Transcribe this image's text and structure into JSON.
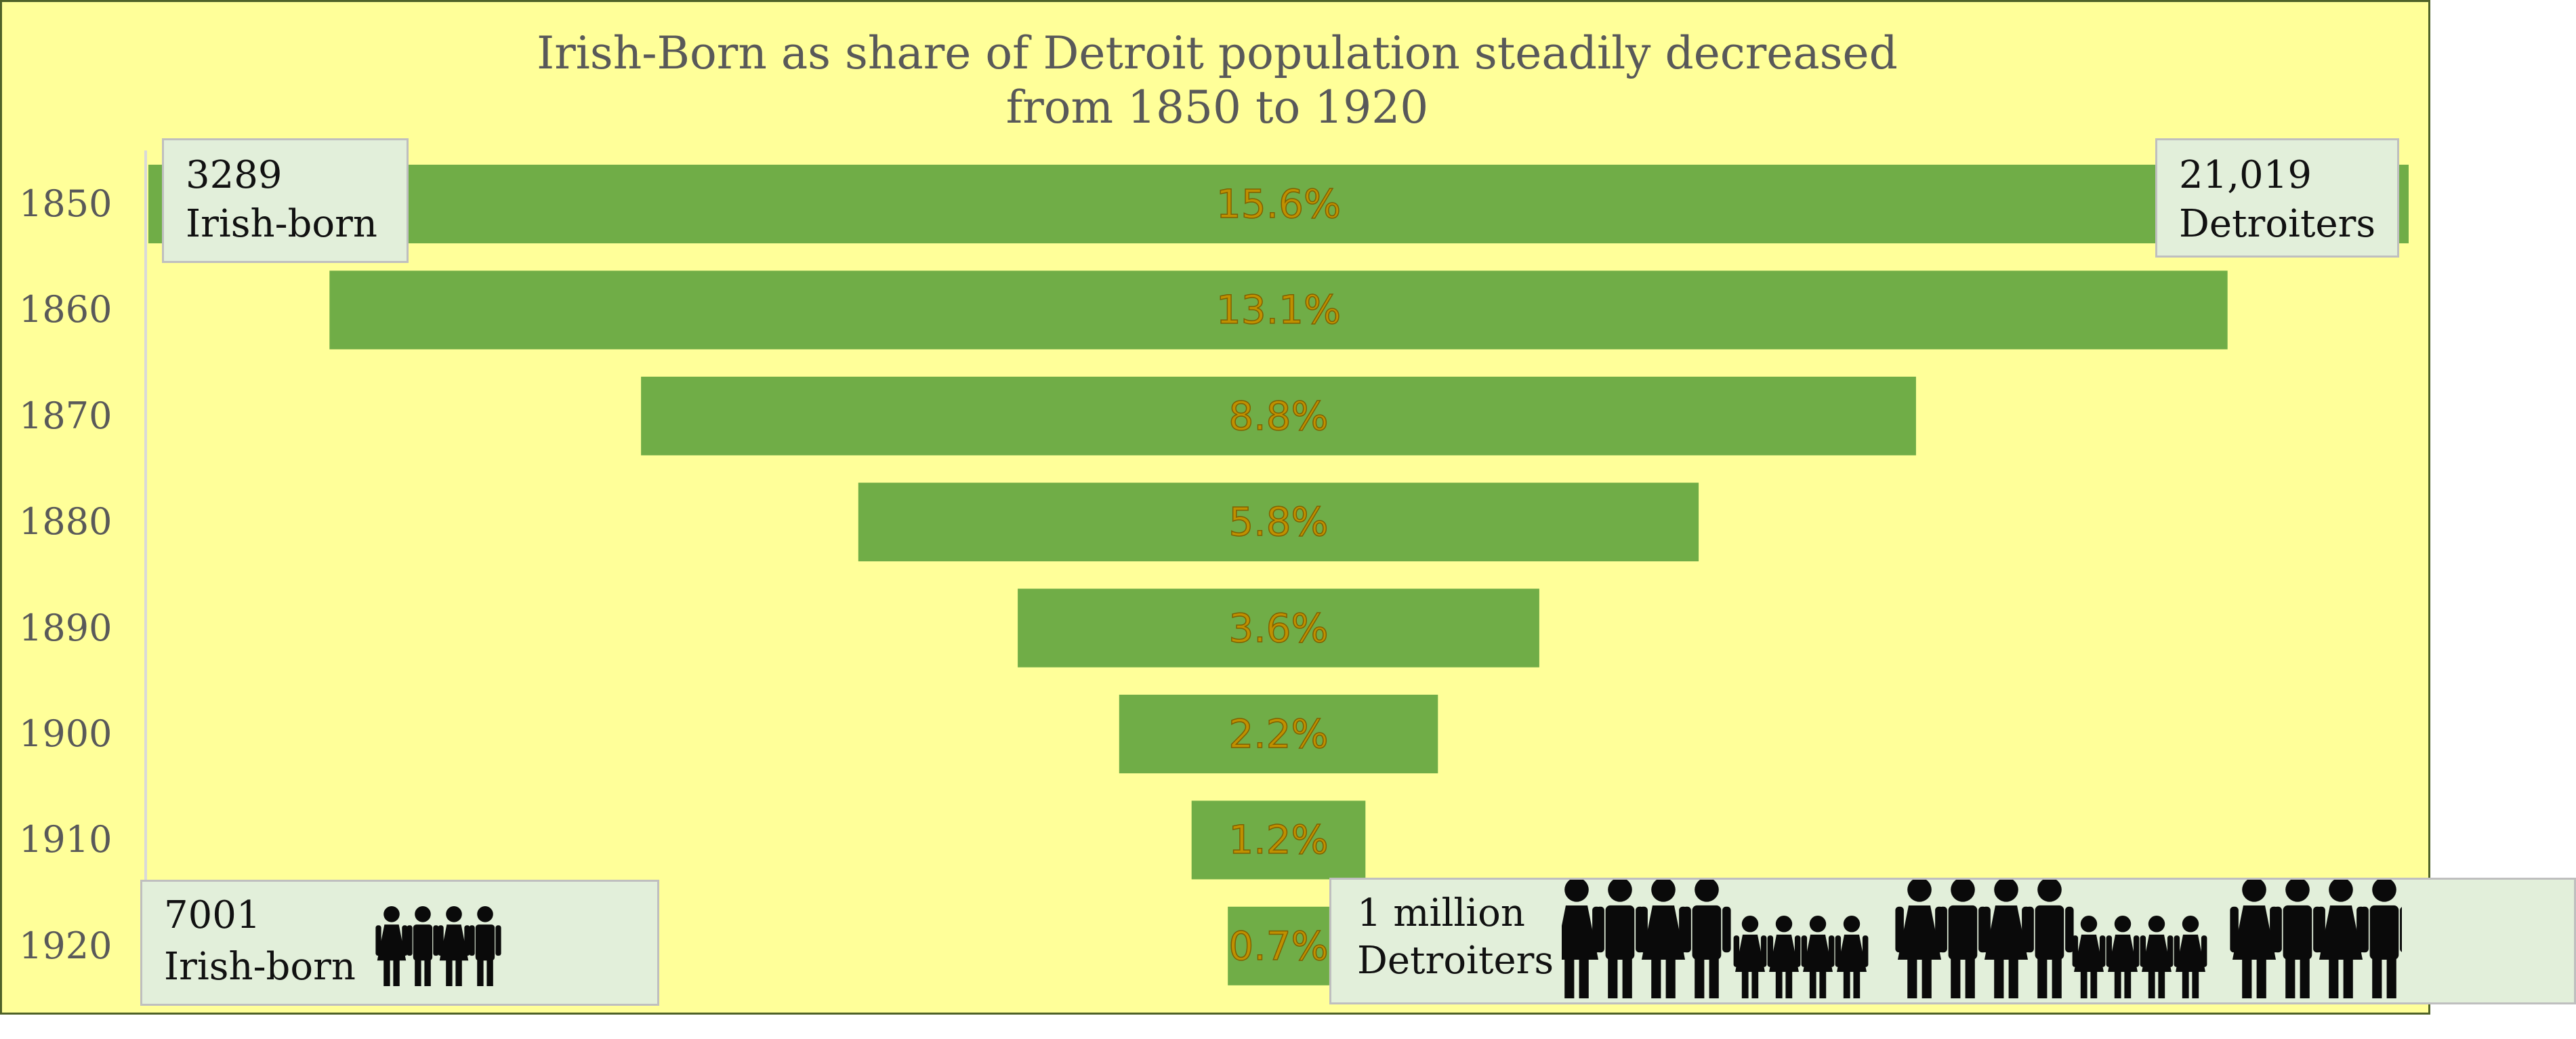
{
  "chart_data": {
    "type": "bar",
    "orientation": "horizontal",
    "style": "centered funnel",
    "title": "Irish-Born as share of Detroit population steadily decreased from 1850 to 1920",
    "title_lines": [
      "Irish-Born as share of Detroit population steadily decreased",
      "from 1850 to 1920"
    ],
    "categories": [
      "1850",
      "1860",
      "1870",
      "1880",
      "1890",
      "1900",
      "1910",
      "1920"
    ],
    "values": [
      15.6,
      13.1,
      8.8,
      5.8,
      3.6,
      2.2,
      1.2,
      0.7
    ],
    "value_labels": [
      "15.6%",
      "13.1%",
      "8.8%",
      "5.8%",
      "3.6%",
      "2.2%",
      "1.2%",
      "0.7%"
    ],
    "unit": "%",
    "xlim": [
      0,
      15.6
    ],
    "grid": false,
    "legend": "none",
    "colors": {
      "background": "#ffff99",
      "bar": "#70ad47",
      "label": "#c09000",
      "label_outline": "#7f6000",
      "callout_fill": "#e2efda",
      "callout_border": "#bfbfbf",
      "axis_text": "#595959",
      "border": "#4f6228"
    },
    "annotations": {
      "top_left": {
        "number": "3289",
        "text": "Irish-born"
      },
      "top_right": {
        "number": "21,019",
        "text": "Detroiters"
      },
      "bottom_left": {
        "number": "7001",
        "text": "Irish-born",
        "icon": "family-group-icon",
        "icon_count": 4
      },
      "bottom_right": {
        "number": "1 million",
        "text": "Detroiters",
        "icon": "people-crowd-icon",
        "icon_groups": [
          "adults",
          "children",
          "adults",
          "children",
          "adults"
        ]
      }
    }
  }
}
